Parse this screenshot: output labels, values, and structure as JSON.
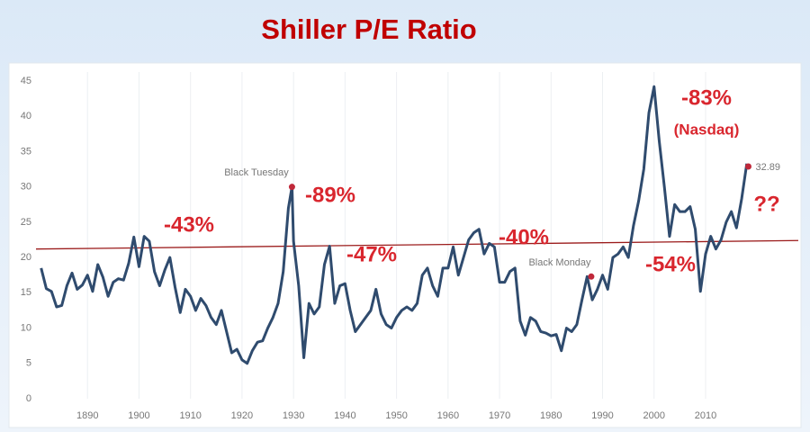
{
  "chart_data": {
    "type": "line",
    "title": "Shiller P/E Ratio",
    "xlim": [
      1880,
      2028
    ],
    "xticks": [
      1890,
      1900,
      1910,
      1920,
      1930,
      1940,
      1950,
      1960,
      1970,
      1980,
      1990,
      2000,
      2010
    ],
    "ylim": [
      0,
      45
    ],
    "yticks": [
      0,
      5,
      10,
      15,
      20,
      25,
      30,
      35,
      40,
      45
    ],
    "grid": "x",
    "series": [
      {
        "name": "Shiller P/E",
        "color": "#2f4b6e",
        "x": [
          1881,
          1882,
          1883,
          1884,
          1885,
          1886,
          1887,
          1888,
          1889,
          1890,
          1891,
          1892,
          1893,
          1894,
          1895,
          1896,
          1897,
          1898,
          1899,
          1900,
          1901,
          1902,
          1903,
          1904,
          1905,
          1906,
          1907,
          1908,
          1909,
          1910,
          1911,
          1912,
          1913,
          1914,
          1915,
          1916,
          1917,
          1918,
          1919,
          1920,
          1921,
          1922,
          1923,
          1924,
          1925,
          1926,
          1927,
          1928,
          1929,
          1929.7,
          1930,
          1931,
          1932,
          1933,
          1934,
          1935,
          1936,
          1937,
          1938,
          1939,
          1940,
          1941,
          1942,
          1943,
          1944,
          1945,
          1946,
          1947,
          1948,
          1949,
          1950,
          1951,
          1952,
          1953,
          1954,
          1955,
          1956,
          1957,
          1958,
          1959,
          1960,
          1961,
          1962,
          1963,
          1964,
          1965,
          1966,
          1967,
          1968,
          1969,
          1970,
          1971,
          1972,
          1973,
          1974,
          1975,
          1976,
          1977,
          1978,
          1979,
          1980,
          1981,
          1982,
          1983,
          1984,
          1985,
          1986,
          1987,
          1988,
          1989,
          1990,
          1991,
          1992,
          1993,
          1994,
          1995,
          1996,
          1997,
          1998,
          1999,
          2000,
          2001,
          2002,
          2003,
          2004,
          2005,
          2006,
          2007,
          2008,
          2009,
          2010,
          2011,
          2012,
          2013,
          2014,
          2015,
          2016,
          2017,
          2018
        ],
        "values": [
          18.5,
          15.6,
          15.2,
          13.0,
          13.2,
          16.0,
          17.8,
          15.5,
          16.1,
          17.5,
          15.2,
          19.0,
          17.2,
          14.5,
          16.5,
          17.0,
          16.8,
          19.2,
          22.9,
          18.7,
          23.0,
          22.3,
          18.0,
          16.0,
          18.2,
          20.0,
          15.8,
          12.2,
          15.5,
          14.5,
          12.5,
          14.2,
          13.2,
          11.5,
          10.5,
          12.5,
          9.5,
          6.5,
          7.0,
          5.5,
          5.0,
          6.8,
          8.0,
          8.2,
          10.0,
          11.5,
          13.5,
          18.0,
          27.0,
          30.0,
          22.3,
          16.0,
          5.8,
          13.5,
          12.0,
          13.0,
          19.0,
          21.6,
          13.5,
          16.0,
          16.3,
          12.5,
          9.5,
          10.5,
          11.5,
          12.5,
          15.5,
          12.0,
          10.5,
          10.0,
          11.5,
          12.5,
          13.0,
          12.5,
          13.5,
          17.5,
          18.5,
          16.0,
          14.5,
          18.5,
          18.5,
          21.5,
          17.5,
          20.0,
          22.5,
          23.5,
          24.0,
          20.5,
          22.0,
          21.5,
          16.5,
          16.5,
          18.0,
          18.5,
          11.0,
          9.0,
          11.5,
          11.0,
          9.5,
          9.3,
          8.9,
          9.1,
          6.8,
          10.0,
          9.5,
          10.5,
          14.0,
          17.3,
          14.0,
          15.5,
          17.5,
          15.5,
          20.0,
          20.5,
          21.5,
          20.0,
          24.5,
          28.0,
          32.5,
          40.5,
          44.2,
          36.5,
          30.0,
          23.0,
          27.5,
          26.5,
          26.5,
          27.2,
          24.0,
          15.2,
          20.5,
          23.0,
          21.2,
          22.5,
          25.0,
          26.5,
          24.2,
          28.3,
          33.3
        ]
      }
    ],
    "trend_line": {
      "color": "#9b1b1b",
      "x": [
        1880,
        2028
      ],
      "values": [
        21.2,
        22.4
      ]
    },
    "events": [
      {
        "label": "Black Tuesday",
        "x": 1929.7,
        "value": 30.0
      },
      {
        "label": "Black Monday",
        "x": 1987.8,
        "value": 17.3
      }
    ],
    "latest": {
      "x": 2018.3,
      "value": 32.89
    },
    "marker_color": "#c0283a",
    "annotations": [
      "-43%",
      "-89%",
      "-47%",
      "-40%",
      "-54%",
      "-83%",
      "(Nasdaq)",
      "??"
    ]
  }
}
